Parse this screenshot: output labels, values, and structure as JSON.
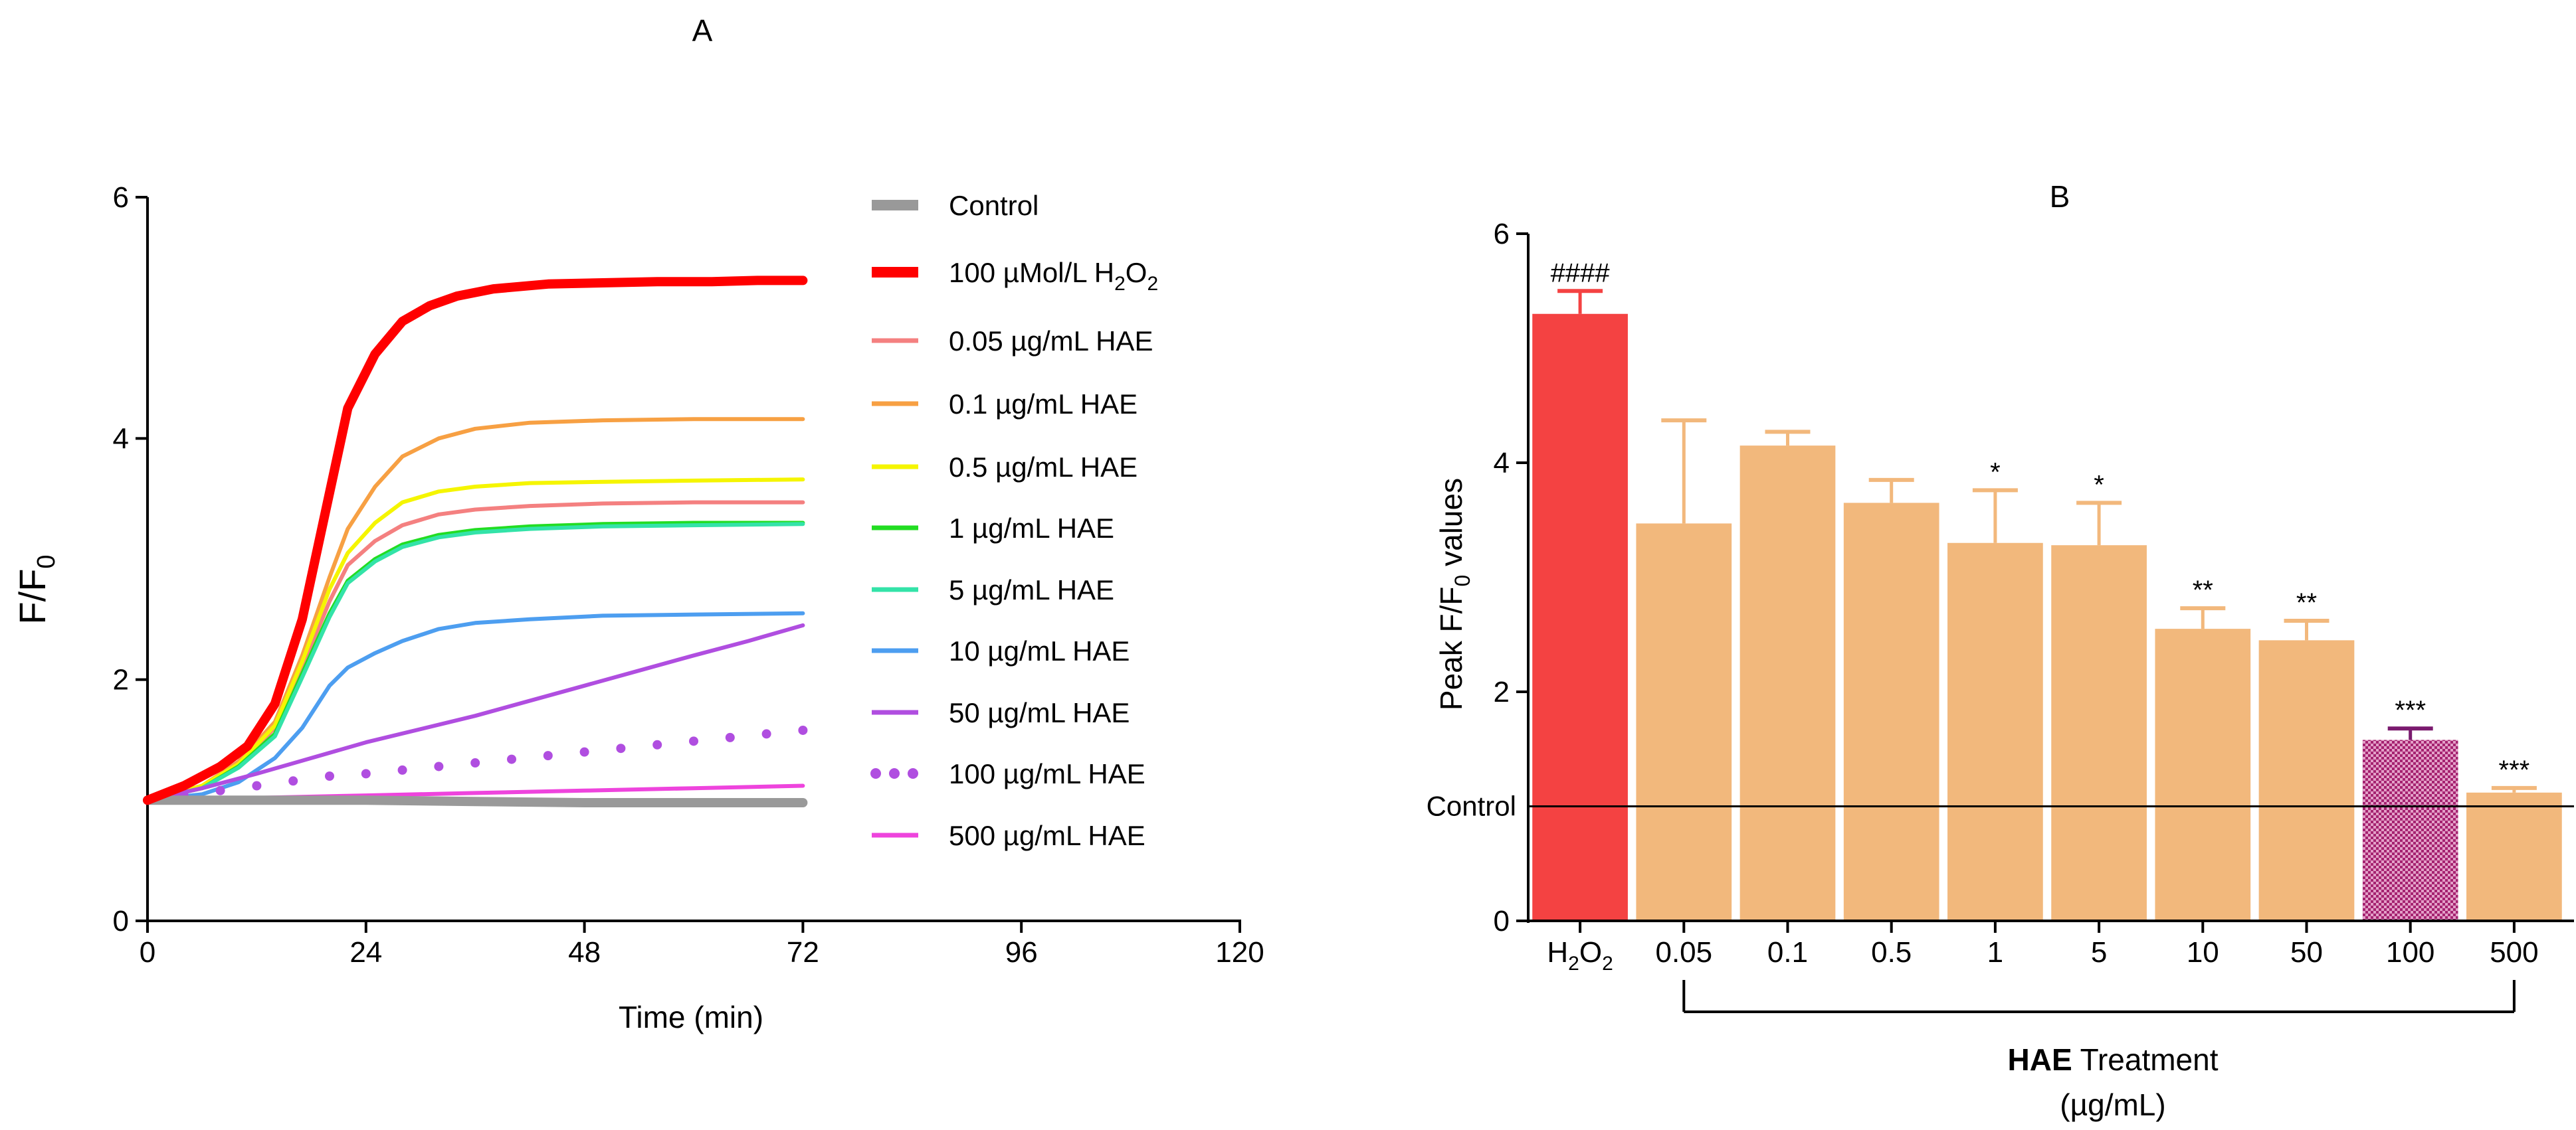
{
  "chart_data": [
    {
      "panel": "A",
      "type": "line",
      "title": "A",
      "xlabel": "Time (min)",
      "ylabel_main": "F/F",
      "ylabel_sub": "0",
      "xlim": [
        0,
        120
      ],
      "ylim": [
        0,
        6
      ],
      "xticks": [
        "0",
        "24",
        "48",
        "72",
        "96",
        "120"
      ],
      "yticks": [
        "0",
        "2",
        "4",
        "6"
      ],
      "legend_position": "right",
      "series": [
        {
          "name": "Control",
          "color": "#999999",
          "style": "thick",
          "x": [
            0,
            12,
            24,
            36,
            48,
            60,
            72
          ],
          "y": [
            1.0,
            1.0,
            1.0,
            0.99,
            0.98,
            0.98,
            0.98
          ]
        },
        {
          "name": "100 µMol/L H₂O₂",
          "label_parts": [
            "100 µMol/L H",
            "2",
            "O",
            "2"
          ],
          "color": "#ff0000",
          "style": "thick",
          "x": [
            0,
            4,
            8,
            11,
            14,
            17,
            20,
            22,
            25,
            28,
            31,
            34,
            38,
            44,
            50,
            56,
            62,
            67,
            72
          ],
          "y": [
            1.0,
            1.12,
            1.28,
            1.45,
            1.8,
            2.5,
            3.55,
            4.25,
            4.7,
            4.97,
            5.1,
            5.18,
            5.24,
            5.28,
            5.29,
            5.3,
            5.3,
            5.31,
            5.31
          ]
        },
        {
          "name": "0.05 µg/mL HAE",
          "color": "#f48080",
          "style": "line",
          "x": [
            0,
            6,
            10,
            14,
            17,
            20,
            22,
            25,
            28,
            32,
            36,
            42,
            50,
            60,
            72
          ],
          "y": [
            1.0,
            1.12,
            1.3,
            1.6,
            2.1,
            2.65,
            2.95,
            3.15,
            3.28,
            3.37,
            3.41,
            3.44,
            3.46,
            3.47,
            3.47
          ]
        },
        {
          "name": "0.1  µg/mL HAE",
          "color": "#f7a043",
          "style": "line",
          "x": [
            0,
            6,
            10,
            14,
            17,
            20,
            22,
            25,
            28,
            32,
            36,
            42,
            50,
            60,
            72
          ],
          "y": [
            1.0,
            1.12,
            1.32,
            1.65,
            2.2,
            2.85,
            3.25,
            3.6,
            3.85,
            4.0,
            4.08,
            4.13,
            4.15,
            4.16,
            4.16
          ]
        },
        {
          "name": "0.5 µg/mL HAE",
          "color": "#f5f500",
          "style": "line",
          "x": [
            0,
            6,
            10,
            14,
            17,
            20,
            22,
            25,
            28,
            32,
            36,
            42,
            50,
            60,
            72
          ],
          "y": [
            1.0,
            1.12,
            1.3,
            1.62,
            2.15,
            2.75,
            3.05,
            3.3,
            3.47,
            3.56,
            3.6,
            3.63,
            3.64,
            3.65,
            3.66
          ]
        },
        {
          "name": "1 µg/mL HAE",
          "color": "#22dd22",
          "style": "line",
          "x": [
            0,
            6,
            10,
            14,
            17,
            20,
            22,
            25,
            28,
            32,
            36,
            42,
            50,
            60,
            72
          ],
          "y": [
            1.0,
            1.1,
            1.28,
            1.55,
            2.05,
            2.55,
            2.82,
            3.0,
            3.12,
            3.2,
            3.24,
            3.27,
            3.29,
            3.3,
            3.3
          ]
        },
        {
          "name": "5 µg/mL HAE",
          "color": "#33e3a8",
          "style": "line",
          "x": [
            0,
            6,
            10,
            14,
            17,
            20,
            22,
            25,
            28,
            32,
            36,
            42,
            50,
            60,
            72
          ],
          "y": [
            1.0,
            1.1,
            1.27,
            1.53,
            2.02,
            2.52,
            2.8,
            2.98,
            3.1,
            3.18,
            3.22,
            3.25,
            3.27,
            3.28,
            3.29
          ]
        },
        {
          "name": "10 µg/mL HAE",
          "color": "#4d9ef0",
          "style": "line",
          "x": [
            0,
            6,
            10,
            14,
            17,
            20,
            22,
            25,
            28,
            32,
            36,
            42,
            50,
            60,
            72
          ],
          "y": [
            1.0,
            1.05,
            1.15,
            1.35,
            1.6,
            1.95,
            2.1,
            2.22,
            2.32,
            2.42,
            2.47,
            2.5,
            2.53,
            2.54,
            2.55
          ]
        },
        {
          "name": "50 µg/mL HAE",
          "color": "#b04ee0",
          "style": "line",
          "x": [
            0,
            6,
            12,
            18,
            24,
            36,
            48,
            60,
            66,
            72
          ],
          "y": [
            1.0,
            1.1,
            1.22,
            1.35,
            1.48,
            1.7,
            1.95,
            2.2,
            2.32,
            2.45
          ]
        },
        {
          "name": "100 µg/mL HAE",
          "color": "#b04ee0",
          "style": "dots",
          "x": [
            0,
            4,
            8,
            12,
            16,
            20,
            24,
            28,
            32,
            36,
            40,
            44,
            48,
            52,
            56,
            60,
            64,
            68,
            72
          ],
          "y": [
            1.0,
            1.04,
            1.08,
            1.12,
            1.16,
            1.2,
            1.22,
            1.25,
            1.28,
            1.31,
            1.34,
            1.37,
            1.4,
            1.43,
            1.46,
            1.49,
            1.52,
            1.55,
            1.58
          ]
        },
        {
          "name": "500 µg/mL HAE",
          "color": "#ee44dd",
          "style": "line",
          "x": [
            0,
            12,
            24,
            36,
            48,
            60,
            72
          ],
          "y": [
            1.0,
            1.02,
            1.04,
            1.06,
            1.08,
            1.1,
            1.12
          ]
        }
      ]
    },
    {
      "panel": "B",
      "type": "bar",
      "title": "B",
      "ylabel_pre": "Peak F/F",
      "ylabel_sub": "0",
      "ylabel_post": " values",
      "ylim": [
        0,
        6
      ],
      "yticks": [
        "0",
        "2",
        "4",
        "6"
      ],
      "categories": [
        "H₂O₂",
        "0.05",
        "0.1",
        "0.5",
        "1",
        "5",
        "10",
        "50",
        "100",
        "500"
      ],
      "first_category_parts": [
        "H",
        "2",
        "O",
        "2"
      ],
      "values": [
        5.3,
        3.47,
        4.15,
        3.65,
        3.3,
        3.28,
        2.55,
        2.45,
        1.58,
        1.12
      ],
      "errors": [
        0.2,
        0.9,
        0.12,
        0.2,
        0.46,
        0.37,
        0.18,
        0.17,
        0.1,
        0.04
      ],
      "colors": [
        "#f44242",
        "#f2b87c",
        "#f2b87c",
        "#f2b87c",
        "#f2b87c",
        "#f2b87c",
        "#f2b87c",
        "#f2b87c",
        "#a52270",
        "#f2b87c"
      ],
      "patterns": [
        "solid",
        "solid",
        "solid",
        "solid",
        "solid",
        "solid",
        "solid",
        "solid",
        "checker",
        "solid"
      ],
      "annotations": [
        "####",
        "",
        "",
        "",
        "*",
        "*",
        "**",
        "**",
        "***",
        "***"
      ],
      "reference_line": {
        "label": "Control",
        "value": 1.0
      },
      "group_label_bold": "HAE",
      "group_label_rest": " Treatment",
      "group_unit": "(µg/mL)",
      "group_span": [
        1,
        9
      ]
    }
  ]
}
